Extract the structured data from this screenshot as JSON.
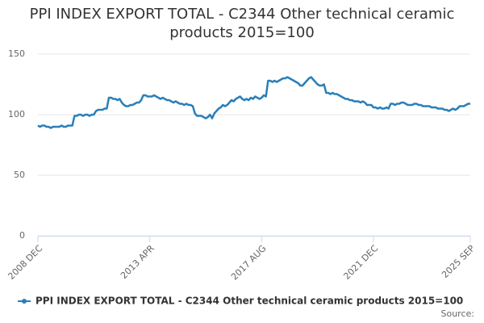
{
  "chart_data": {
    "type": "line",
    "title": "PPI INDEX EXPORT TOTAL - C2344 Other technical ceramic products 2015=100",
    "source_label": "Source:",
    "categories": [
      "2008 DEC",
      null,
      null,
      null,
      null,
      null,
      null,
      null,
      null,
      null,
      null,
      null,
      null,
      null,
      null,
      null,
      null,
      null,
      null,
      null,
      null,
      null,
      null,
      null,
      null,
      null,
      null,
      null,
      null,
      null,
      null,
      null,
      null,
      null,
      null,
      null,
      null,
      null,
      null,
      null,
      null,
      null,
      null,
      null,
      null,
      null,
      null,
      null,
      null,
      null,
      null,
      null,
      "2013 APR",
      null,
      null,
      null,
      null,
      null,
      null,
      null,
      null,
      null,
      null,
      null,
      null,
      null,
      null,
      null,
      null,
      null,
      null,
      null,
      null,
      null,
      null,
      null,
      null,
      null,
      null,
      null,
      null,
      null,
      null,
      null,
      null,
      null,
      null,
      null,
      null,
      null,
      null,
      null,
      null,
      null,
      null,
      null,
      null,
      null,
      null,
      null,
      null,
      null,
      null,
      null,
      "2017 AUG",
      null,
      null,
      null,
      null,
      null,
      null,
      null,
      null,
      null,
      null,
      null,
      null,
      null,
      null,
      null,
      null,
      null,
      null,
      null,
      null,
      null,
      null,
      null,
      null,
      null,
      null,
      null,
      null,
      null,
      null,
      null,
      null,
      null,
      null,
      null,
      null,
      null,
      null,
      null,
      null,
      null,
      null,
      null,
      null,
      null,
      null,
      null,
      null,
      null,
      null,
      null,
      "2021 DEC",
      null,
      null,
      null,
      null,
      null,
      null,
      null,
      null,
      null,
      null,
      null,
      null,
      null,
      null,
      null,
      null,
      null,
      null,
      null,
      null,
      null,
      null,
      null,
      null,
      null,
      null,
      null,
      null,
      null,
      null,
      null,
      null,
      null,
      null,
      null,
      null,
      null,
      null,
      null,
      null,
      null,
      null,
      null,
      null,
      "2025 SEP"
    ],
    "series": [
      {
        "name": "PPI INDEX EXPORT TOTAL - C2344 Other technical ceramic products 2015=100",
        "color": "#2a7fb8",
        "values": [
          91,
          90,
          91,
          91,
          90,
          90,
          89,
          90,
          90,
          90,
          90,
          91,
          90,
          90,
          91,
          91,
          91,
          99,
          99,
          100,
          100,
          99,
          100,
          100,
          99,
          100,
          100,
          103,
          104,
          104,
          104,
          105,
          105,
          114,
          114,
          113,
          113,
          112,
          113,
          110,
          108,
          107,
          107,
          108,
          108,
          109,
          110,
          110,
          112,
          116,
          116,
          115,
          115,
          115,
          116,
          115,
          114,
          113,
          114,
          113,
          112,
          112,
          111,
          110,
          111,
          110,
          109,
          109,
          108,
          109,
          108,
          108,
          107,
          101,
          99,
          99,
          99,
          98,
          97,
          98,
          100,
          97,
          101,
          103,
          105,
          106,
          108,
          107,
          108,
          110,
          112,
          111,
          113,
          114,
          115,
          113,
          112,
          113,
          112,
          114,
          113,
          115,
          114,
          113,
          114,
          116,
          115,
          128,
          128,
          127,
          128,
          127,
          128,
          129,
          130,
          130,
          131,
          130,
          129,
          128,
          127,
          126,
          124,
          124,
          126,
          128,
          130,
          131,
          129,
          127,
          125,
          124,
          124,
          125,
          118,
          118,
          117,
          118,
          117,
          117,
          116,
          115,
          114,
          113,
          113,
          112,
          112,
          111,
          111,
          111,
          110,
          111,
          110,
          108,
          108,
          108,
          106,
          106,
          105,
          106,
          105,
          105,
          106,
          105,
          109,
          109,
          108,
          109,
          109,
          110,
          110,
          109,
          108,
          108,
          108,
          109,
          109,
          108,
          108,
          107,
          107,
          107,
          107,
          106,
          106,
          106,
          105,
          105,
          105,
          104,
          104,
          103,
          104,
          105,
          104,
          105,
          107,
          107,
          107,
          108,
          109,
          109
        ]
      }
    ],
    "ylim": [
      0,
      150
    ],
    "yticks": [
      0,
      50,
      100,
      150
    ],
    "grid": true,
    "legend": "bottom"
  }
}
